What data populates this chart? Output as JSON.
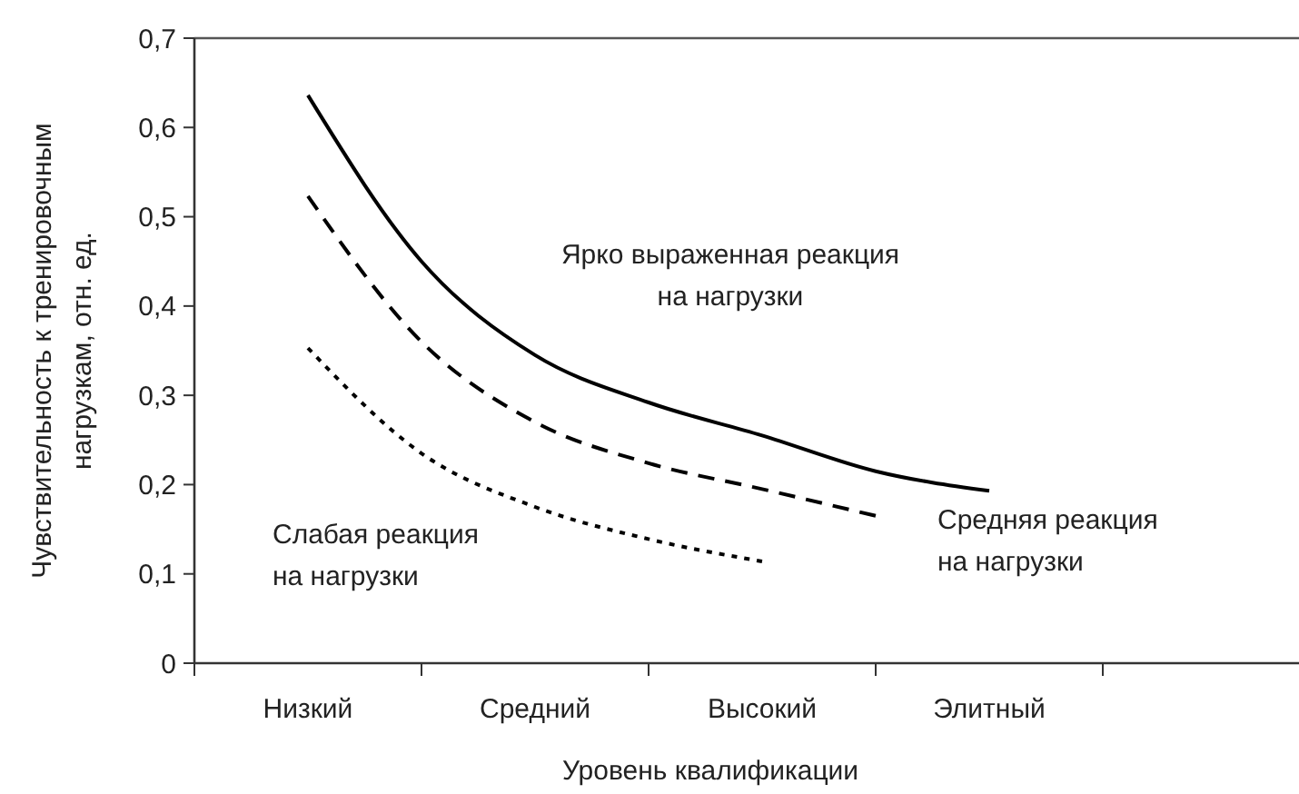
{
  "chart_data": {
    "type": "line",
    "xlabel": "Уровень квалификации",
    "ylabel": "Чувствительность к тренировочным нагрузкам, отн. ед.",
    "categories": [
      "Низкий",
      null,
      "Средний",
      null,
      "Высокий",
      null,
      "Элитный",
      null,
      null
    ],
    "ylim": [
      0,
      0.7
    ],
    "yticks": [
      {
        "value": 0,
        "label": "0"
      },
      {
        "value": 0.1,
        "label": "0,1"
      },
      {
        "value": 0.2,
        "label": "0,2"
      },
      {
        "value": 0.3,
        "label": "0,3"
      },
      {
        "value": 0.4,
        "label": "0,4"
      },
      {
        "value": 0.5,
        "label": "0,5"
      },
      {
        "value": 0.6,
        "label": "0,6"
      },
      {
        "value": 0.7,
        "label": "0,7"
      }
    ],
    "marker": "none",
    "series": [
      {
        "color": "#000000",
        "line_style": "solid",
        "values": [
          0.636,
          0.45,
          0.345,
          0.292,
          0.255,
          0.215,
          0.193,
          null,
          null
        ]
      },
      {
        "color": "#000000",
        "line_style": "dashed",
        "values": [
          0.523,
          0.36,
          0.27,
          0.224,
          0.195,
          0.165,
          null,
          null,
          null
        ]
      },
      {
        "color": "#000000",
        "line_style": "dotted",
        "values": [
          0.353,
          0.235,
          0.175,
          0.139,
          0.114,
          null,
          null,
          null,
          null
        ]
      }
    ],
    "annotations": [
      "Ярко выраженная реакция\nна нагрузки",
      "Средняя реакция\nна нагрузки",
      "Слабая реакция\nна нагрузки"
    ]
  }
}
